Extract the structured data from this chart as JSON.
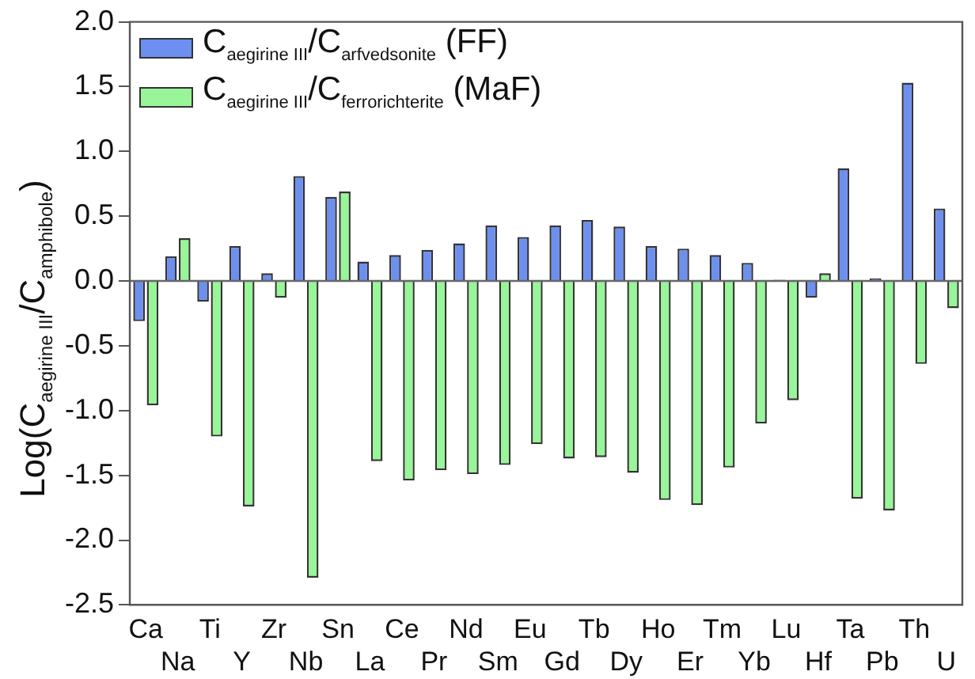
{
  "chart_data": {
    "type": "bar",
    "ylabel": "Log(C$_{aegirine III}$/C$_{amphibole}$)",
    "categories": [
      "Ca",
      "Na",
      "Ti",
      "Y",
      "Zr",
      "Nb",
      "Sn",
      "La",
      "Ce",
      "Pr",
      "Nd",
      "Sm",
      "Eu",
      "Gd",
      "Tb",
      "Dy",
      "Ho",
      "Er",
      "Tm",
      "Yb",
      "Lu",
      "Hf",
      "Ta",
      "Pb",
      "Th",
      "U"
    ],
    "series": [
      {
        "name": "C$_{aegirine III}$/C$_{arfvedsonite}$ (FF)",
        "color": "#6d8ff0",
        "values": [
          -0.31,
          0.19,
          -0.16,
          0.27,
          0.06,
          0.81,
          0.65,
          0.15,
          0.2,
          0.24,
          0.29,
          0.43,
          0.34,
          0.43,
          0.47,
          0.42,
          0.27,
          0.25,
          0.2,
          0.14,
          0.01,
          -0.13,
          0.87,
          0.02,
          1.53,
          0.56
        ]
      },
      {
        "name": "C$_{aegirine III}$/C$_{ferrorichterite}$ (MaF)",
        "color": "#98f598",
        "values": [
          -0.96,
          0.33,
          -1.2,
          -1.74,
          -0.13,
          -2.29,
          0.69,
          -1.39,
          -1.54,
          -1.46,
          -1.49,
          -1.42,
          -1.26,
          -1.37,
          -1.36,
          -1.48,
          -1.69,
          -1.73,
          -1.44,
          -1.1,
          -0.92,
          0.06,
          -1.68,
          -1.77,
          -0.64,
          -0.21
        ]
      }
    ],
    "ylim": [
      -2.5,
      2.0
    ],
    "yticks": [
      {
        "value": -2.5,
        "label": "-2.5"
      },
      {
        "value": -2,
        "label": "-2.0"
      },
      {
        "value": -1.5,
        "label": "-1.5"
      },
      {
        "value": -1,
        "label": "-1.0"
      },
      {
        "value": -0.5,
        "label": "-0.5"
      },
      {
        "value": 0,
        "label": "0.0"
      },
      {
        "value": 0.5,
        "label": "0.5"
      },
      {
        "value": 1,
        "label": "1.0"
      },
      {
        "value": 1.5,
        "label": "1.5"
      },
      {
        "value": 2,
        "label": "2.0"
      }
    ],
    "ref_lines": [
      {
        "axis": "y",
        "value": 0,
        "color": "#666666"
      }
    ],
    "legend": "top left",
    "grid": false
  }
}
